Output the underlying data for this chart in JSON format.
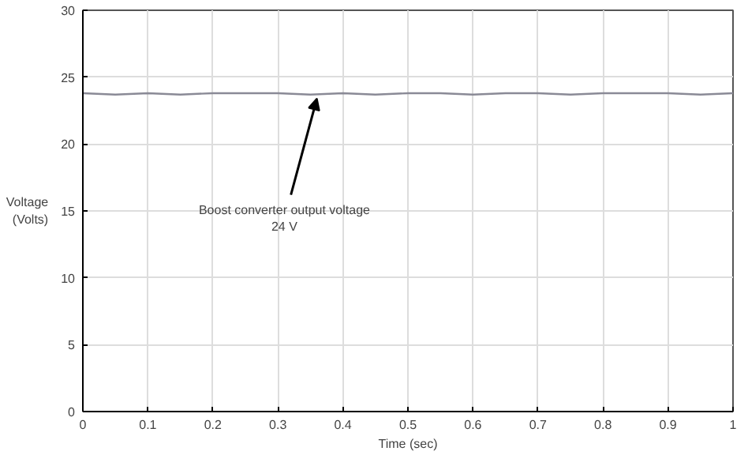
{
  "chart_data": {
    "type": "line",
    "xlabel": "Time (sec)",
    "ylabel": "Voltage\n(Volts)",
    "x": [
      0,
      0.05,
      0.1,
      0.15,
      0.2,
      0.25,
      0.3,
      0.35,
      0.4,
      0.45,
      0.5,
      0.55,
      0.6,
      0.65,
      0.7,
      0.75,
      0.8,
      0.85,
      0.9,
      0.95,
      1
    ],
    "series": [
      {
        "color": "#8a8a96",
        "values": [
          23.8,
          23.7,
          23.8,
          23.7,
          23.8,
          23.8,
          23.8,
          23.7,
          23.8,
          23.7,
          23.8,
          23.8,
          23.7,
          23.8,
          23.8,
          23.7,
          23.8,
          23.8,
          23.8,
          23.7,
          23.8
        ]
      }
    ],
    "xlim": [
      0,
      1
    ],
    "ylim": [
      0,
      30
    ],
    "xticks": [
      0,
      0.1,
      0.2,
      0.3,
      0.4,
      0.5,
      0.6,
      0.7,
      0.8,
      0.9,
      1
    ],
    "yticks": [
      0,
      5,
      10,
      15,
      20,
      25,
      30
    ],
    "annotations": [
      {
        "text": "Boost converter output voltage\n24 V",
        "x": 0.36,
        "y": 23.7
      }
    ],
    "grid": true
  }
}
